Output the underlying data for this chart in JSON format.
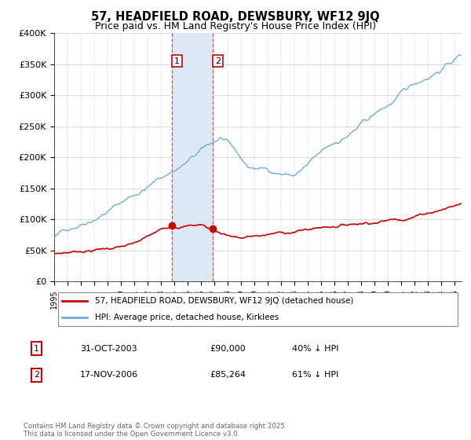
{
  "title": "57, HEADFIELD ROAD, DEWSBURY, WF12 9JQ",
  "subtitle": "Price paid vs. HM Land Registry's House Price Index (HPI)",
  "legend_line1": "57, HEADFIELD ROAD, DEWSBURY, WF12 9JQ (detached house)",
  "legend_line2": "HPI: Average price, detached house, Kirklees",
  "table_row1_num": "1",
  "table_row1_date": "31-OCT-2003",
  "table_row1_price": "£90,000",
  "table_row1_hpi": "40% ↓ HPI",
  "table_row2_num": "2",
  "table_row2_date": "17-NOV-2006",
  "table_row2_price": "£85,264",
  "table_row2_hpi": "61% ↓ HPI",
  "footer": "Contains HM Land Registry data © Crown copyright and database right 2025.\nThis data is licensed under the Open Government Licence v3.0.",
  "sale1_year": 2003.83,
  "sale1_price": 90000,
  "sale2_year": 2006.88,
  "sale2_price": 85264,
  "hpi_color": "#6baed6",
  "price_color": "#cc0000",
  "shade_color": "#dce9f5",
  "ylim": [
    0,
    400000
  ],
  "xlim_start": 1995,
  "xlim_end": 2025.5,
  "figsize": [
    6.0,
    5.6
  ],
  "dpi": 100
}
